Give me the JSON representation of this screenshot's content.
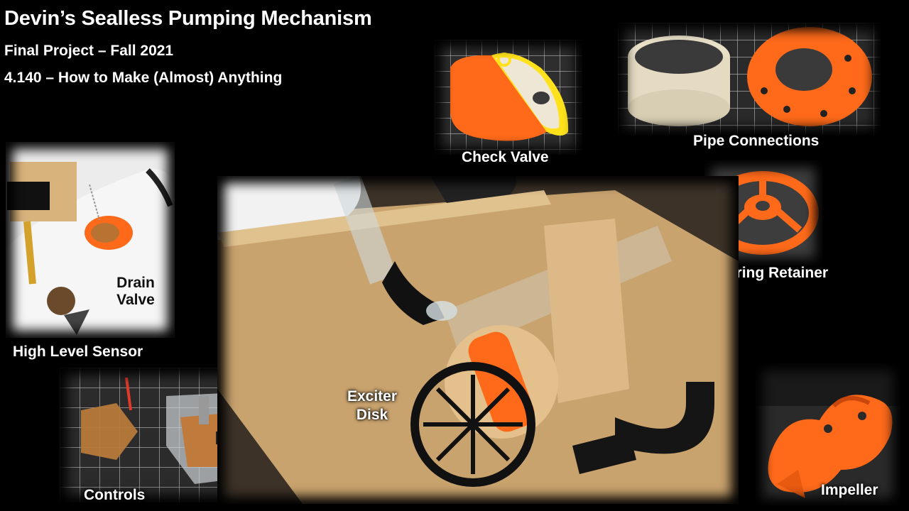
{
  "slide": {
    "title": "Devin’s Sealless Pumping Mechanism",
    "subtitle1": "Final Project – Fall 2021",
    "subtitle2": "4.140 – How to Make (Almost) Anything"
  },
  "labels": {
    "check_valve": "Check Valve",
    "pipe_connections": "Pipe Connections",
    "bearing_retainer": "Bearing Retainer",
    "drain_valve": "Drain Valve",
    "high_level_sensor": "High Level Sensor",
    "exciter_disk": "Exciter Disk",
    "controls": "Controls",
    "impeller": "Impeller"
  },
  "colors": {
    "orange": "#ff6a1a",
    "wood": "#d9b37c",
    "background": "#000000"
  }
}
